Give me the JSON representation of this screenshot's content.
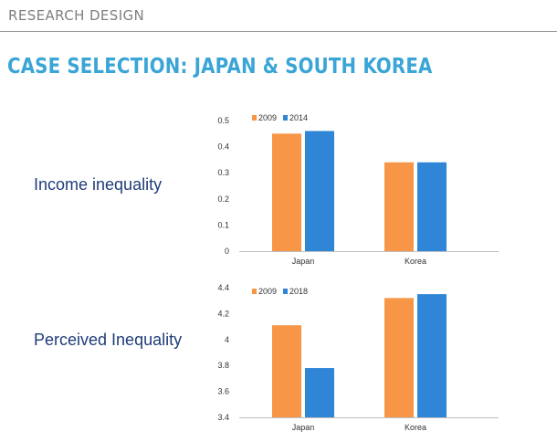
{
  "header": {
    "section": "RESEARCH DESIGN",
    "title": "CASE SELECTION: JAPAN & SOUTH KOREA"
  },
  "rows": {
    "income_label": "Income inequality",
    "perceived_label": "Perceived Inequality"
  },
  "colors": {
    "series_2009": "#f79646",
    "series_later": "#2f86d6",
    "title": "#3aa5d6",
    "row_label": "#1f3c78"
  },
  "chart_data": [
    {
      "type": "bar",
      "title": "",
      "categories": [
        "Japan",
        "Korea"
      ],
      "series": [
        {
          "name": "2009",
          "values": [
            0.45,
            0.34
          ]
        },
        {
          "name": "2014",
          "values": [
            0.46,
            0.34
          ]
        }
      ],
      "ylim": [
        0,
        0.5
      ],
      "yticks": [
        "0",
        "0.1",
        "0.2",
        "0.3",
        "0.4",
        "0.5"
      ],
      "xlabel": "",
      "ylabel": "",
      "legend": "top-left",
      "grid": false
    },
    {
      "type": "bar",
      "title": "",
      "categories": [
        "Japan",
        "Korea"
      ],
      "series": [
        {
          "name": "2009",
          "values": [
            4.11,
            4.32
          ]
        },
        {
          "name": "2018",
          "values": [
            3.78,
            4.35
          ]
        }
      ],
      "ylim": [
        3.4,
        4.4
      ],
      "yticks": [
        "3.4",
        "3.6",
        "3.8",
        "4",
        "4.2",
        "4.4"
      ],
      "xlabel": "",
      "ylabel": "",
      "legend": "top-left",
      "grid": false
    }
  ]
}
